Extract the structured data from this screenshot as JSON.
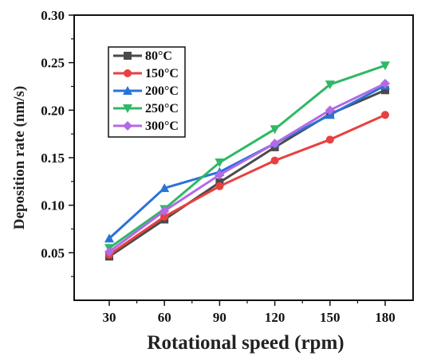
{
  "chart_data": {
    "type": "line",
    "title": "",
    "xlabel": "Rotational speed (rpm)",
    "ylabel": "Deposition rate (nm/s)",
    "x": [
      30,
      60,
      90,
      120,
      150,
      180
    ],
    "x_tick_labels": [
      "30",
      "60",
      "90",
      "120",
      "150",
      "180"
    ],
    "ylim": [
      0.0,
      0.3
    ],
    "y_ticks": [
      0.05,
      0.1,
      0.15,
      0.2,
      0.25,
      0.3
    ],
    "y_tick_labels": [
      "0.05",
      "0.10",
      "0.15",
      "0.20",
      "0.25",
      "0.30"
    ],
    "grid": false,
    "legend_position": "top-left",
    "series": [
      {
        "name": "80°C",
        "color": "#4a4a4a",
        "marker": "square",
        "values": [
          0.046,
          0.085,
          0.124,
          0.161,
          0.196,
          0.221
        ]
      },
      {
        "name": "150°C",
        "color": "#e84040",
        "marker": "circle",
        "values": [
          0.048,
          0.088,
          0.12,
          0.147,
          0.169,
          0.195
        ]
      },
      {
        "name": "200°C",
        "color": "#2a73d6",
        "marker": "triangle-up",
        "values": [
          0.065,
          0.118,
          0.135,
          0.165,
          0.195,
          0.226
        ]
      },
      {
        "name": "250°C",
        "color": "#2fb866",
        "marker": "triangle-down",
        "values": [
          0.055,
          0.096,
          0.145,
          0.18,
          0.227,
          0.247
        ]
      },
      {
        "name": "300°C",
        "color": "#b36ae6",
        "marker": "diamond",
        "values": [
          0.051,
          0.094,
          0.132,
          0.165,
          0.2,
          0.228
        ]
      }
    ]
  }
}
